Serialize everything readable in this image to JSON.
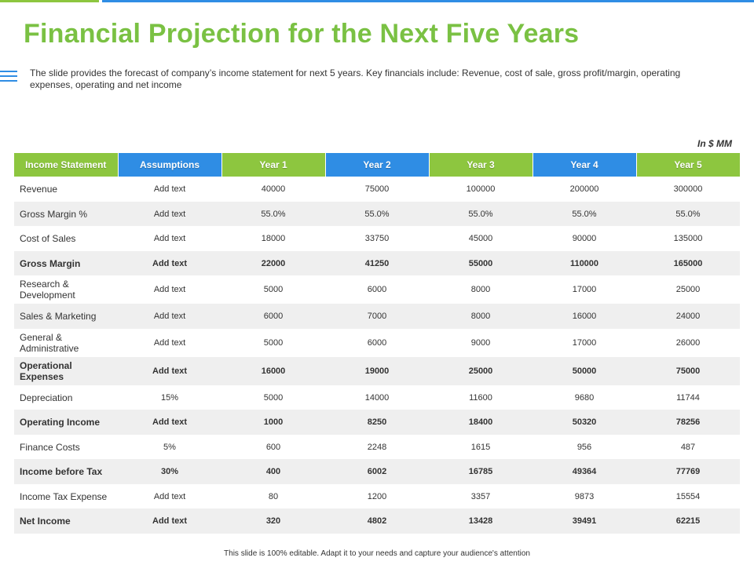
{
  "slide": {
    "title": "Financial Projection for the Next Five Years",
    "description": "The slide provides the forecast of company’s income statement for next 5 years. Key financials include: Revenue, cost of sale, gross profit/margin, operating expenses, operating and net income",
    "unit_note": "In $ MM",
    "footer": "This slide is 100% editable. Adapt it to your needs and capture your audience's attention"
  },
  "colors": {
    "green": "#8dc63f",
    "blue": "#2f8de4",
    "title_green": "#7ac143",
    "row_shade": "#efefef"
  },
  "table": {
    "headers": [
      "Income Statement",
      "Assumptions",
      "Year 1",
      "Year 2",
      "Year 3",
      "Year 4",
      "Year 5"
    ],
    "header_colors": [
      "green",
      "blue",
      "green",
      "blue",
      "green",
      "blue",
      "green"
    ],
    "rows": [
      {
        "cells": [
          "Revenue",
          "Add text",
          "40000",
          "75000",
          "100000",
          "200000",
          "300000"
        ],
        "bold": false,
        "shaded": false,
        "height": 32
      },
      {
        "cells": [
          "Gross Margin %",
          "Add text",
          "55.0%",
          "55.0%",
          "55.0%",
          "55.0%",
          "55.0%"
        ],
        "bold": false,
        "shaded": true,
        "height": 31
      },
      {
        "cells": [
          "Cost of Sales",
          "Add text",
          "18000",
          "33750",
          "45000",
          "90000",
          "135000"
        ],
        "bold": false,
        "shaded": false,
        "height": 32
      },
      {
        "cells": [
          "Gross Margin",
          "Add text",
          "22000",
          "41250",
          "55000",
          "110000",
          "165000"
        ],
        "bold": true,
        "shaded": true,
        "height": 31
      },
      {
        "cells": [
          "Research & Development",
          "Add text",
          "5000",
          "6000",
          "8000",
          "17000",
          "25000"
        ],
        "bold": false,
        "shaded": false,
        "height": 36
      },
      {
        "cells": [
          "Sales & Marketing",
          "Add text",
          "6000",
          "7000",
          "8000",
          "16000",
          "24000"
        ],
        "bold": false,
        "shaded": true,
        "height": 32
      },
      {
        "cells": [
          "General & Administrative",
          "Add text",
          "5000",
          "6000",
          "9000",
          "17000",
          "26000"
        ],
        "bold": false,
        "shaded": false,
        "height": 36
      },
      {
        "cells": [
          "Operational Expenses",
          "Add text",
          "16000",
          "19000",
          "25000",
          "50000",
          "75000"
        ],
        "bold": true,
        "shaded": true,
        "height": 36
      },
      {
        "cells": [
          "Depreciation",
          "15%",
          "5000",
          "14000",
          "11600",
          "9680",
          "11744"
        ],
        "bold": false,
        "shaded": false,
        "height": 31
      },
      {
        "cells": [
          "Operating Income",
          "Add text",
          "1000",
          "8250",
          "18400",
          "50320",
          "78256"
        ],
        "bold": true,
        "shaded": true,
        "height": 32
      },
      {
        "cells": [
          "Finance Costs",
          "5%",
          "600",
          "2248",
          "1615",
          "956",
          "487"
        ],
        "bold": false,
        "shaded": false,
        "height": 31
      },
      {
        "cells": [
          "Income before Tax",
          "30%",
          "400",
          "6002",
          "16785",
          "49364",
          "77769"
        ],
        "bold": true,
        "shaded": true,
        "height": 32
      },
      {
        "cells": [
          "Income Tax Expense",
          "Add text",
          "80",
          "1200",
          "3357",
          "9873",
          "15554"
        ],
        "bold": false,
        "shaded": false,
        "height": 31
      },
      {
        "cells": [
          "Net Income",
          "Add text",
          "320",
          "4802",
          "13428",
          "39491",
          "62215"
        ],
        "bold": true,
        "shaded": true,
        "height": 32
      }
    ]
  }
}
